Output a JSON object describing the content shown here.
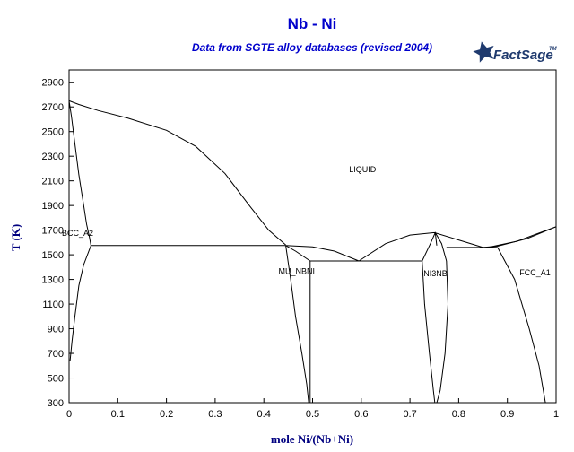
{
  "chart_data": {
    "type": "line",
    "title": "Nb - Ni",
    "subtitle": "Data from SGTE alloy databases (revised 2004)",
    "xlabel": "mole Ni/(Nb+Ni)",
    "ylabel": "T (K)",
    "xlim": [
      0,
      1
    ],
    "ylim": [
      300,
      3000
    ],
    "x_ticks": [
      "0",
      "0.1",
      "0.2",
      "0.3",
      "0.4",
      "0.5",
      "0.6",
      "0.7",
      "0.8",
      "0.9",
      "1"
    ],
    "y_ticks": [
      "300",
      "500",
      "700",
      "900",
      "1100",
      "1300",
      "1500",
      "1700",
      "1900",
      "2100",
      "2300",
      "2500",
      "2700",
      "2900"
    ],
    "grid": false,
    "phase_labels": [
      {
        "text": "LIQUID",
        "x": 0.575,
        "y": 2170
      },
      {
        "text": "BCC_A2",
        "x": 0.0,
        "y": 1655
      },
      {
        "text": "MU_NBNI",
        "x": 0.43,
        "y": 1345
      },
      {
        "text": "NI3NB",
        "x": 0.728,
        "y": 1325
      },
      {
        "text": "FCC_A1",
        "x": 0.925,
        "y": 1335
      }
    ],
    "series": [
      {
        "values": [
          [
            0,
            2750
          ],
          [
            0.02,
            2720
          ],
          [
            0.06,
            2670
          ],
          [
            0.12,
            2610
          ],
          [
            0.2,
            2510
          ],
          [
            0.26,
            2380
          ],
          [
            0.32,
            2160
          ],
          [
            0.37,
            1900
          ],
          [
            0.41,
            1700
          ],
          [
            0.445,
            1580
          ]
        ]
      },
      {
        "values": [
          [
            0,
            2750
          ],
          [
            0.005,
            2620
          ],
          [
            0.012,
            2400
          ],
          [
            0.02,
            2150
          ],
          [
            0.03,
            1900
          ],
          [
            0.036,
            1750
          ],
          [
            0.042,
            1640
          ],
          [
            0.045,
            1575
          ]
        ]
      },
      {
        "values": [
          [
            0.045,
            1575
          ],
          [
            0.03,
            1420
          ],
          [
            0.02,
            1250
          ],
          [
            0.012,
            1000
          ],
          [
            0.006,
            800
          ],
          [
            0.002,
            640
          ]
        ]
      },
      {
        "values": [
          [
            0.045,
            1575
          ],
          [
            0.445,
            1575
          ]
        ]
      },
      {
        "values": [
          [
            0.445,
            1575
          ],
          [
            0.5,
            1565
          ],
          [
            0.545,
            1530
          ],
          [
            0.595,
            1450
          ]
        ]
      },
      {
        "values": [
          [
            0.445,
            1575
          ],
          [
            0.465,
            1530
          ],
          [
            0.495,
            1450
          ]
        ]
      },
      {
        "values": [
          [
            0.445,
            1575
          ],
          [
            0.455,
            1300
          ],
          [
            0.465,
            1000
          ],
          [
            0.478,
            700
          ],
          [
            0.488,
            450
          ],
          [
            0.492,
            300
          ]
        ]
      },
      {
        "values": [
          [
            0.495,
            1450
          ],
          [
            0.495,
            300
          ]
        ]
      },
      {
        "values": [
          [
            0.495,
            1450
          ],
          [
            0.725,
            1450
          ]
        ]
      },
      {
        "values": [
          [
            0.595,
            1450
          ],
          [
            0.65,
            1590
          ],
          [
            0.7,
            1660
          ],
          [
            0.75,
            1680
          ],
          [
            0.8,
            1620
          ],
          [
            0.85,
            1560
          ]
        ]
      },
      {
        "values": [
          [
            0.725,
            1450
          ],
          [
            0.742,
            1590
          ],
          [
            0.752,
            1680
          ],
          [
            0.765,
            1590
          ],
          [
            0.775,
            1450
          ]
        ]
      },
      {
        "values": [
          [
            0.725,
            1450
          ],
          [
            0.73,
            1100
          ],
          [
            0.74,
            700
          ],
          [
            0.748,
            400
          ],
          [
            0.751,
            300
          ]
        ]
      },
      {
        "values": [
          [
            0.775,
            1450
          ],
          [
            0.778,
            1100
          ],
          [
            0.772,
            700
          ],
          [
            0.762,
            400
          ],
          [
            0.755,
            300
          ]
        ]
      },
      {
        "values": [
          [
            0.775,
            1560
          ],
          [
            0.88,
            1560
          ]
        ]
      },
      {
        "values": [
          [
            0.85,
            1560
          ],
          [
            0.88,
            1570
          ],
          [
            0.94,
            1630
          ],
          [
            1.0,
            1728
          ]
        ]
      },
      {
        "values": [
          [
            0.86,
            1560
          ],
          [
            0.92,
            1610
          ],
          [
            0.96,
            1670
          ],
          [
            1.0,
            1728
          ]
        ]
      },
      {
        "values": [
          [
            0.88,
            1560
          ],
          [
            0.915,
            1300
          ],
          [
            0.945,
            900
          ],
          [
            0.965,
            600
          ],
          [
            0.978,
            300
          ]
        ]
      },
      {
        "values": [
          [
            0.752,
            1680
          ],
          [
            0.755,
            1575
          ]
        ]
      }
    ]
  },
  "logo": {
    "text": "FactSage",
    "mark": "TM"
  }
}
